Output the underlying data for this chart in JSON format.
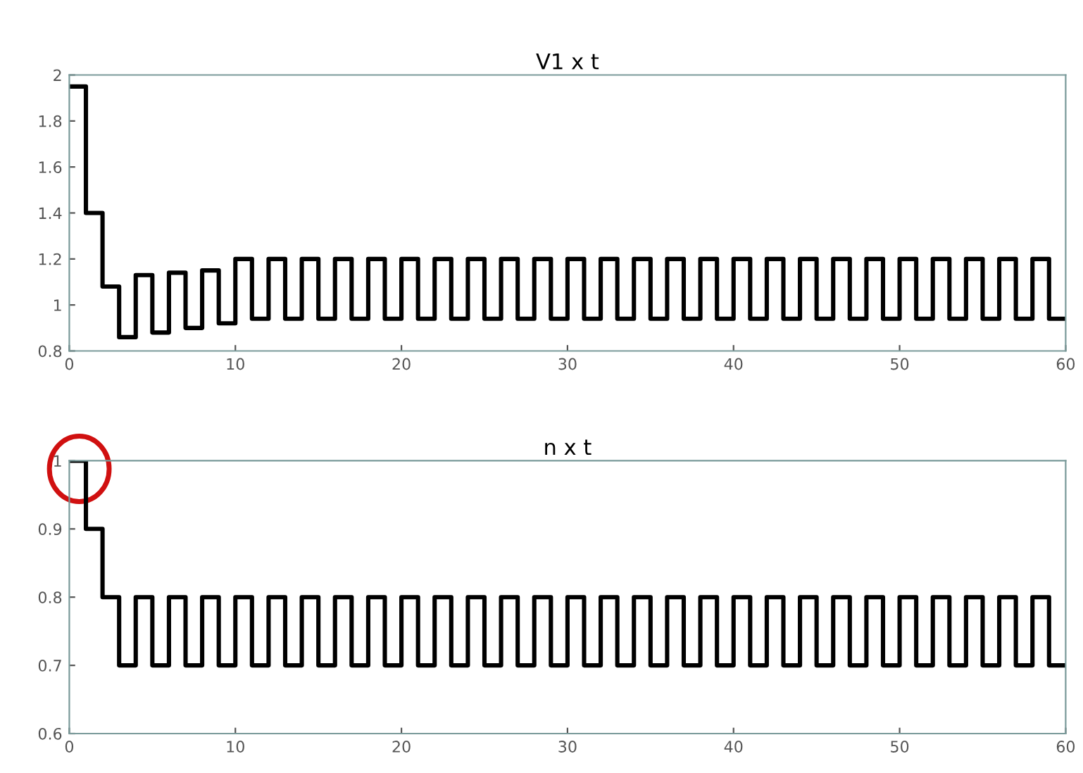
{
  "chart_data": [
    {
      "type": "step",
      "title": "V1 x t",
      "x": [
        0,
        1,
        2,
        3,
        4,
        5,
        6,
        7,
        8,
        9,
        10,
        11,
        12,
        13,
        14,
        15,
        16,
        17,
        18,
        19,
        20,
        21,
        22,
        23,
        24,
        25,
        26,
        27,
        28,
        29,
        30,
        31,
        32,
        33,
        34,
        35,
        36,
        37,
        38,
        39,
        40,
        41,
        42,
        43,
        44,
        45,
        46,
        47,
        48,
        49,
        50,
        51,
        52,
        53,
        54,
        55,
        56,
        57,
        58,
        59,
        60
      ],
      "series": [
        {
          "color": "#000000",
          "values": [
            1.95,
            1.4,
            1.08,
            0.86,
            1.13,
            0.88,
            1.14,
            0.9,
            1.15,
            0.92,
            1.2,
            0.94,
            1.2,
            0.94,
            1.2,
            0.94,
            1.2,
            0.94,
            1.2,
            0.94,
            1.2,
            0.94,
            1.2,
            0.94,
            1.2,
            0.94,
            1.2,
            0.94,
            1.2,
            0.94,
            1.2,
            0.94,
            1.2,
            0.94,
            1.2,
            0.94,
            1.2,
            0.94,
            1.2,
            0.94,
            1.2,
            0.94,
            1.2,
            0.94,
            1.2,
            0.94,
            1.2,
            0.94,
            1.2,
            0.94,
            1.2,
            0.94,
            1.2,
            0.94,
            1.2,
            0.94,
            1.2,
            0.94,
            1.2,
            0.94,
            0.94
          ]
        }
      ],
      "xlim": [
        0,
        60
      ],
      "ylim": [
        0.8,
        2
      ],
      "xticks": [
        0,
        10,
        20,
        30,
        40,
        50,
        60
      ],
      "yticks": [
        0.8,
        1,
        1.2,
        1.4,
        1.6,
        1.8,
        2
      ]
    },
    {
      "type": "step",
      "title": "n x t",
      "x": [
        0,
        1,
        2,
        3,
        4,
        5,
        6,
        7,
        8,
        9,
        10,
        11,
        12,
        13,
        14,
        15,
        16,
        17,
        18,
        19,
        20,
        21,
        22,
        23,
        24,
        25,
        26,
        27,
        28,
        29,
        30,
        31,
        32,
        33,
        34,
        35,
        36,
        37,
        38,
        39,
        40,
        41,
        42,
        43,
        44,
        45,
        46,
        47,
        48,
        49,
        50,
        51,
        52,
        53,
        54,
        55,
        56,
        57,
        58,
        59,
        60
      ],
      "series": [
        {
          "color": "#000000",
          "values": [
            1,
            0.9,
            0.8,
            0.7,
            0.8,
            0.7,
            0.8,
            0.7,
            0.8,
            0.7,
            0.8,
            0.7,
            0.8,
            0.7,
            0.8,
            0.7,
            0.8,
            0.7,
            0.8,
            0.7,
            0.8,
            0.7,
            0.8,
            0.7,
            0.8,
            0.7,
            0.8,
            0.7,
            0.8,
            0.7,
            0.8,
            0.7,
            0.8,
            0.7,
            0.8,
            0.7,
            0.8,
            0.7,
            0.8,
            0.7,
            0.8,
            0.7,
            0.8,
            0.7,
            0.8,
            0.7,
            0.8,
            0.7,
            0.8,
            0.7,
            0.8,
            0.7,
            0.8,
            0.7,
            0.8,
            0.7,
            0.8,
            0.7,
            0.8,
            0.7,
            0.7
          ]
        }
      ],
      "xlim": [
        0,
        60
      ],
      "ylim": [
        0.6,
        1
      ],
      "xticks": [
        0,
        10,
        20,
        30,
        40,
        50,
        60
      ],
      "yticks": [
        0.6,
        0.7,
        0.8,
        0.9,
        1
      ]
    }
  ]
}
